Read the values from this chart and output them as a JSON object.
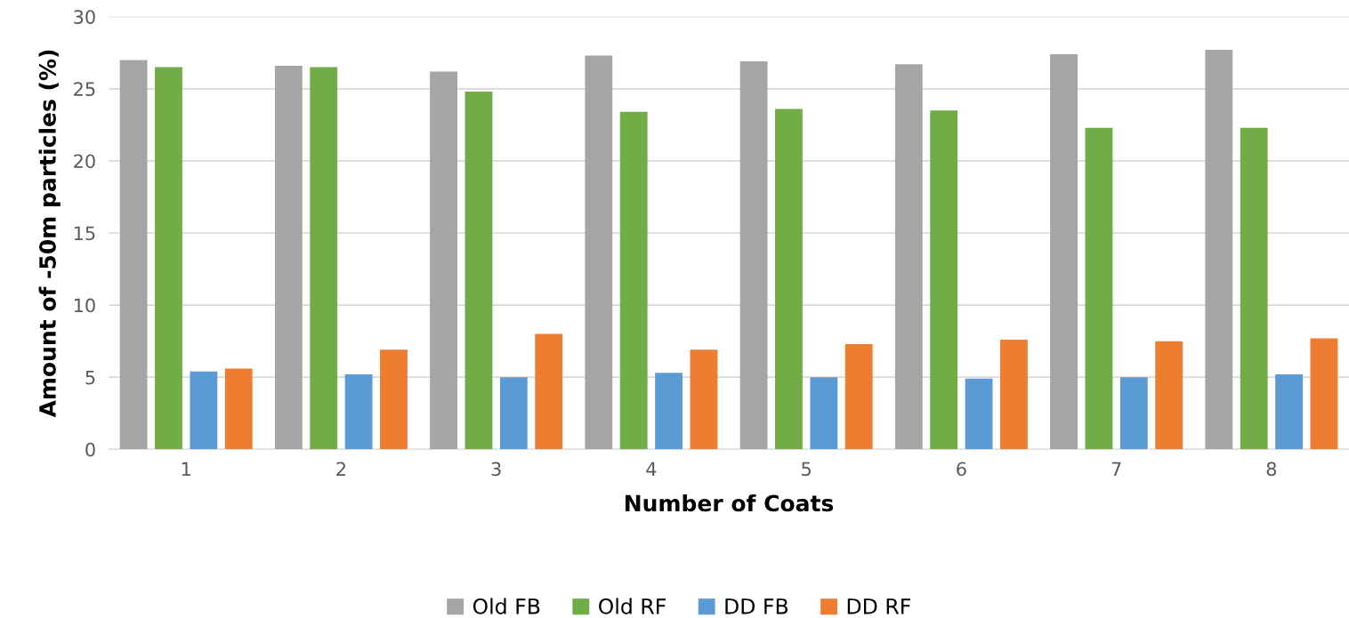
{
  "chart_data": {
    "type": "bar",
    "xlabel": "Number of Coats",
    "ylabel": "Amount of -50m particles (%)",
    "categories": [
      "1",
      "2",
      "3",
      "4",
      "5",
      "6",
      "7",
      "8"
    ],
    "series": [
      {
        "name": "Old FB",
        "color": "#a5a5a5",
        "values": [
          27.0,
          26.6,
          26.2,
          27.3,
          26.9,
          26.7,
          27.4,
          27.7
        ]
      },
      {
        "name": "Old RF",
        "color": "#70ad47",
        "values": [
          26.5,
          26.5,
          24.8,
          23.4,
          23.6,
          23.5,
          22.3,
          22.3
        ]
      },
      {
        "name": "DD FB",
        "color": "#5b9bd5",
        "values": [
          5.4,
          5.2,
          5.0,
          5.3,
          5.0,
          4.9,
          5.0,
          5.2
        ]
      },
      {
        "name": "DD RF",
        "color": "#ed7d31",
        "values": [
          5.6,
          6.9,
          8.0,
          6.9,
          7.3,
          7.6,
          7.5,
          7.7
        ]
      }
    ],
    "ylim": [
      0,
      30
    ],
    "yticks": [
      0,
      5,
      10,
      15,
      20,
      25,
      30
    ],
    "grid": "y",
    "legend": "bottom"
  }
}
